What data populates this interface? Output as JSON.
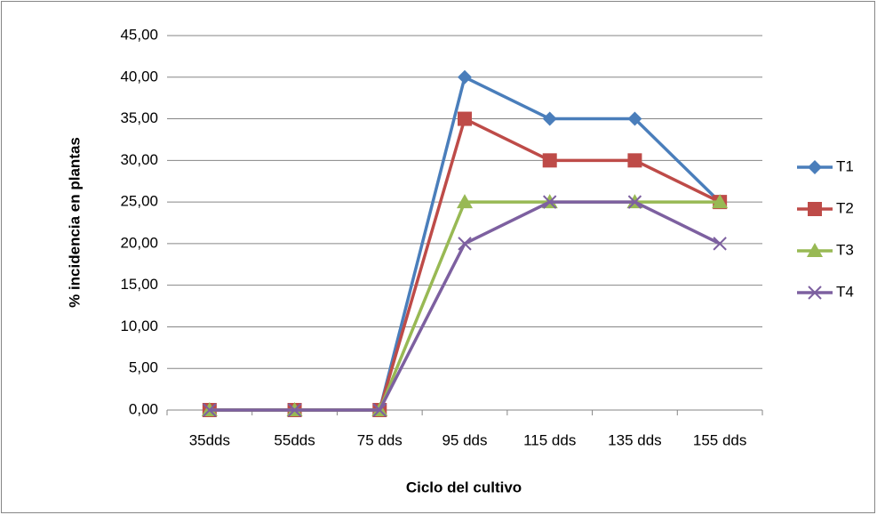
{
  "chart_data": {
    "type": "line",
    "x_label": "Ciclo del cultivo",
    "y_label": "% incidencia en plantas",
    "categories": [
      "35dds",
      "55dds",
      "75 dds",
      "95 dds",
      "115 dds",
      "135 dds",
      "155 dds"
    ],
    "series": [
      {
        "name": "T1",
        "color": "#4a7ebb",
        "marker": "diamond",
        "values": [
          0,
          0,
          0,
          40,
          35,
          35,
          25
        ]
      },
      {
        "name": "T2",
        "color": "#be4b48",
        "marker": "square",
        "values": [
          0,
          0,
          0,
          35,
          30,
          30,
          25
        ]
      },
      {
        "name": "T3",
        "color": "#98b954",
        "marker": "triangle",
        "values": [
          0,
          0,
          0,
          25,
          25,
          25,
          25
        ]
      },
      {
        "name": "T4",
        "color": "#7d60a0",
        "marker": "x",
        "values": [
          0,
          0,
          0,
          20,
          25,
          25,
          20
        ]
      }
    ],
    "ylim": [
      0,
      45
    ],
    "yticks": [
      {
        "value": 0,
        "label": "0,00"
      },
      {
        "value": 5,
        "label": "5,00"
      },
      {
        "value": 10,
        "label": "10,00"
      },
      {
        "value": 15,
        "label": "15,00"
      },
      {
        "value": 20,
        "label": "20,00"
      },
      {
        "value": 25,
        "label": "25,00"
      },
      {
        "value": 30,
        "label": "30,00"
      },
      {
        "value": 35,
        "label": "35,00"
      },
      {
        "value": 40,
        "label": "40,00"
      },
      {
        "value": 45,
        "label": "45,00"
      }
    ],
    "grid": true,
    "legend": "right"
  }
}
